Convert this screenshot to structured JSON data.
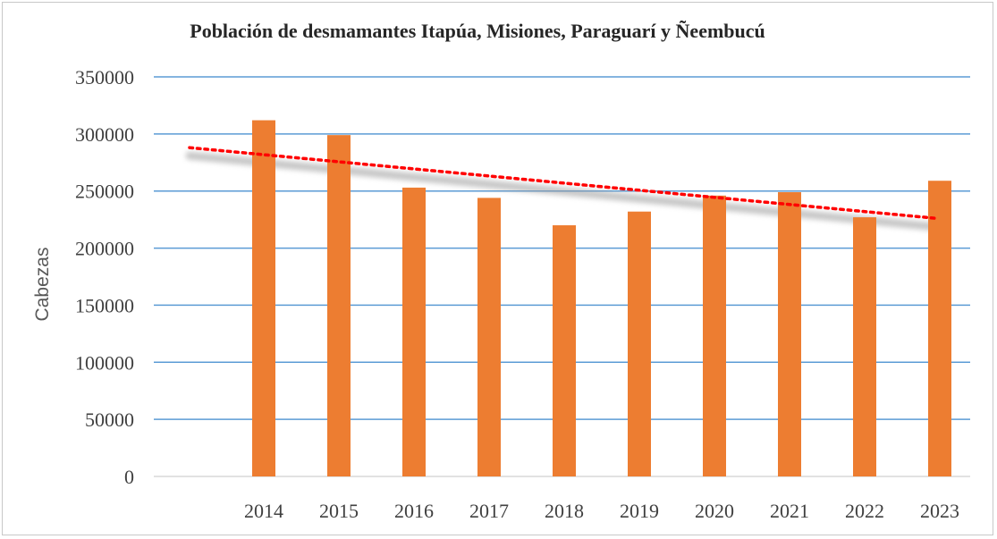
{
  "chart_data": {
    "type": "bar",
    "title": "Población  de desmamantes  Itapúa,  Misiones, Paraguarí y Ñeembucú",
    "xlabel": "",
    "ylabel": "Cabezas",
    "categories": [
      "2014",
      "2015",
      "2016",
      "2017",
      "2018",
      "2019",
      "2020",
      "2021",
      "2022",
      "2023"
    ],
    "values": [
      312000,
      299000,
      253000,
      244000,
      220000,
      232000,
      246000,
      249000,
      227000,
      259000
    ],
    "ylim": [
      0,
      350000
    ],
    "yticks": [
      "0",
      "50000",
      "100000",
      "150000",
      "200000",
      "250000",
      "300000",
      "350000"
    ],
    "grid": true,
    "legend": "none",
    "trendline": {
      "type": "linear",
      "style": "dotted",
      "start": 288000,
      "end": 226000
    },
    "colors": {
      "bar": "#ed7d31",
      "grid": "#5b9bd5",
      "trend": "#ff0000"
    }
  }
}
